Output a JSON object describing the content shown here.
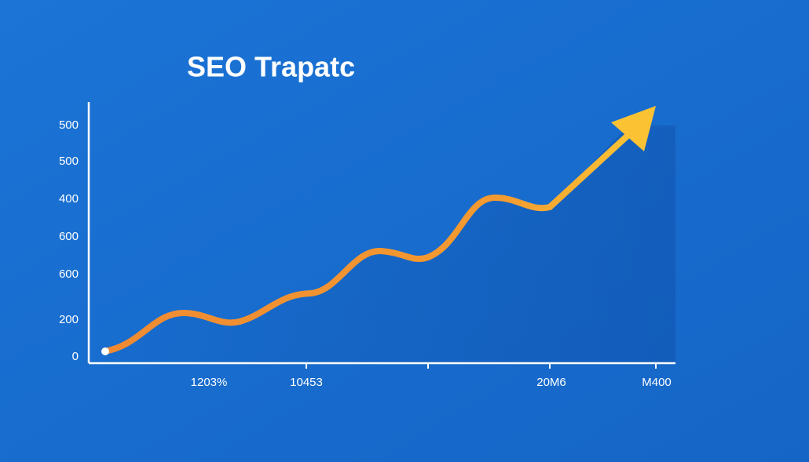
{
  "title": "SEO Trapatc",
  "y_axis_labels": [
    "500",
    "500",
    "400",
    "600",
    "600",
    "200",
    "0"
  ],
  "x_axis_labels": [
    "1203%",
    "10453",
    "20M6",
    "M400"
  ]
}
